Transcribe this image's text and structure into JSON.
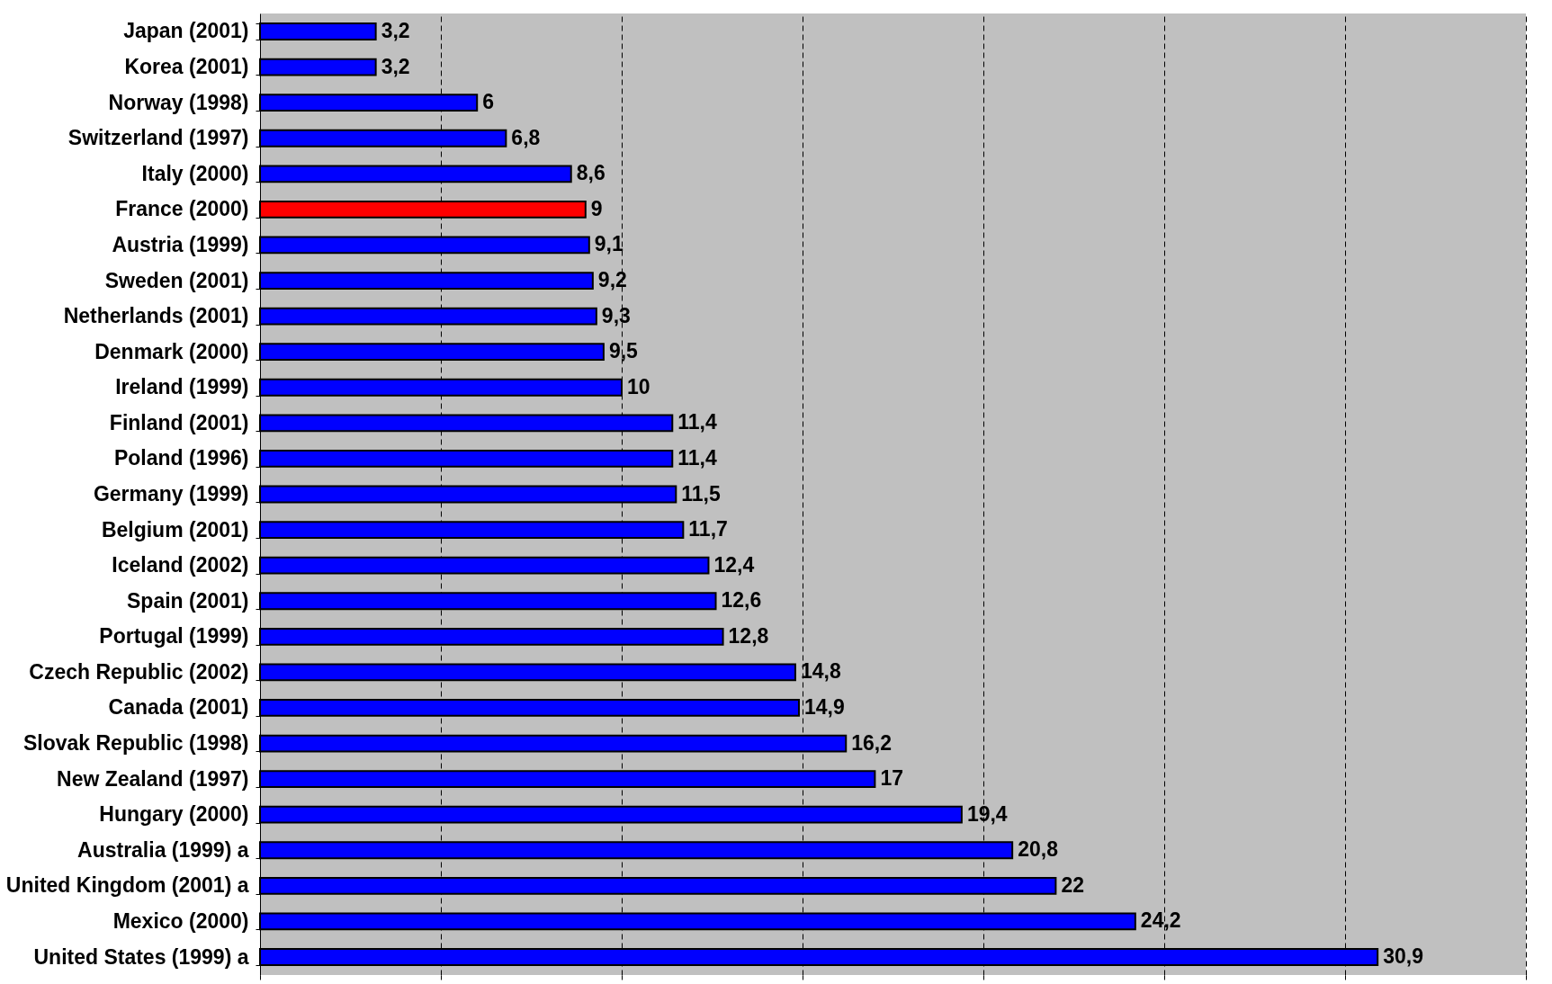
{
  "chart_data": {
    "type": "bar",
    "orientation": "horizontal",
    "categories": [
      "Japan (2001)",
      "Korea (2001)",
      "Norway (1998)",
      "Switzerland (1997)",
      "Italy (2000)",
      "France (2000)",
      "Austria (1999)",
      "Sweden (2001)",
      "Netherlands (2001)",
      "Denmark (2000)",
      "Ireland (1999)",
      "Finland (2001)",
      "Poland (1996)",
      "Germany (1999)",
      "Belgium (2001)",
      "Iceland (2002)",
      "Spain (2001)",
      "Portugal (1999)",
      "Czech Republic (2002)",
      "Canada (2001)",
      "Slovak Republic (1998)",
      "New Zealand (1997)",
      "Hungary (2000)",
      "Australia (1999) a",
      "United Kingdom (2001) a",
      "Mexico (2000)",
      "United States (1999) a"
    ],
    "values": [
      3.2,
      3.2,
      6,
      6.8,
      8.6,
      9,
      9.1,
      9.2,
      9.3,
      9.5,
      10,
      11.4,
      11.4,
      11.5,
      11.7,
      12.4,
      12.6,
      12.8,
      14.8,
      14.9,
      16.2,
      17,
      19.4,
      20.8,
      22,
      24.2,
      30.9
    ],
    "value_labels": [
      "3,2",
      "3,2",
      "6",
      "6,8",
      "8,6",
      "9",
      "9,1",
      "9,2",
      "9,3",
      "9,5",
      "10",
      "11,4",
      "11,4",
      "11,5",
      "11,7",
      "12,4",
      "12,6",
      "12,8",
      "14,8",
      "14,9",
      "16,2",
      "17",
      "19,4",
      "20,8",
      "22",
      "24,2",
      "30,9"
    ],
    "colors": [
      "#0000ff",
      "#0000ff",
      "#0000ff",
      "#0000ff",
      "#0000ff",
      "#ff0000",
      "#0000ff",
      "#0000ff",
      "#0000ff",
      "#0000ff",
      "#0000ff",
      "#0000ff",
      "#0000ff",
      "#0000ff",
      "#0000ff",
      "#0000ff",
      "#0000ff",
      "#0000ff",
      "#0000ff",
      "#0000ff",
      "#0000ff",
      "#0000ff",
      "#0000ff",
      "#0000ff",
      "#0000ff",
      "#0000ff",
      "#0000ff"
    ],
    "xlim": [
      0,
      35
    ],
    "xticks": [
      {
        "value": 0,
        "label": null
      },
      {
        "value": 5,
        "label": null
      },
      {
        "value": 10,
        "label": null
      },
      {
        "value": 15,
        "label": null
      },
      {
        "value": 20,
        "label": null
      },
      {
        "value": 25,
        "label": null
      },
      {
        "value": 30,
        "label": null
      },
      {
        "value": 35,
        "label": null
      }
    ],
    "grid": "x",
    "tick_labels": "y"
  }
}
